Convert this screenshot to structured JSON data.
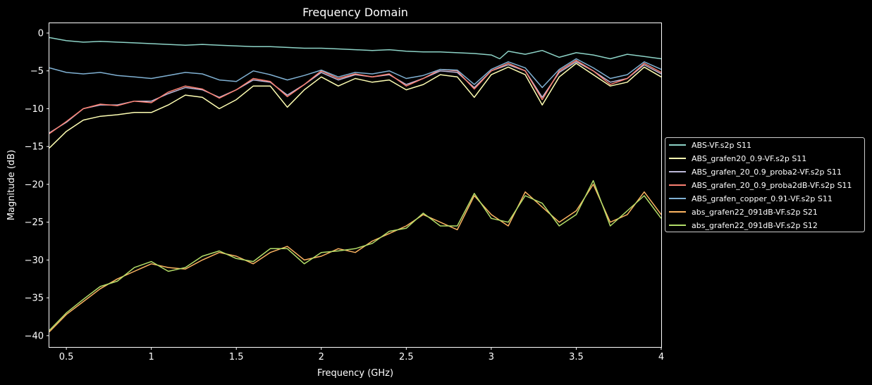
{
  "chart_data": {
    "type": "line",
    "title": "Frequency Domain",
    "xlabel": "Frequency (GHz)",
    "ylabel": "Magnitude (dB)",
    "xlim": [
      0.4,
      4.0
    ],
    "ylim": [
      -41.5,
      1.3
    ],
    "xticks": [
      0.5,
      1,
      1.5,
      2,
      2.5,
      3,
      3.5,
      4
    ],
    "xtick_labels": [
      "0.5",
      "1",
      "1.5",
      "2",
      "2.5",
      "3",
      "3.5",
      "4"
    ],
    "yticks": [
      0,
      -5,
      -10,
      -15,
      -20,
      -25,
      -30,
      -35,
      -40
    ],
    "ytick_labels": [
      "0",
      "−5",
      "−10",
      "−15",
      "−20",
      "−25",
      "−30",
      "−35",
      "−40"
    ],
    "grid": false,
    "legend_position": "center-right-outside",
    "background": "#000000",
    "axes_color": "#ffffff",
    "series": [
      {
        "name": "ABS-VF.s2p S11",
        "color": "#8dd3c7",
        "x": [
          0.4,
          0.5,
          0.6,
          0.7,
          0.8,
          0.9,
          1.0,
          1.1,
          1.2,
          1.3,
          1.4,
          1.5,
          1.6,
          1.7,
          1.8,
          1.9,
          2.0,
          2.1,
          2.2,
          2.3,
          2.4,
          2.5,
          2.6,
          2.7,
          2.8,
          2.9,
          3.0,
          3.05,
          3.1,
          3.2,
          3.3,
          3.4,
          3.5,
          3.6,
          3.7,
          3.8,
          3.9,
          4.0
        ],
        "y": [
          -0.6,
          -1.0,
          -1.2,
          -1.1,
          -1.2,
          -1.3,
          -1.4,
          -1.5,
          -1.6,
          -1.5,
          -1.6,
          -1.7,
          -1.8,
          -1.8,
          -1.9,
          -2.0,
          -2.0,
          -2.1,
          -2.2,
          -2.3,
          -2.2,
          -2.4,
          -2.5,
          -2.5,
          -2.6,
          -2.7,
          -2.9,
          -3.4,
          -2.4,
          -2.8,
          -2.3,
          -3.2,
          -2.6,
          -2.9,
          -3.4,
          -2.8,
          -3.1,
          -3.4
        ]
      },
      {
        "name": "ABS_grafen20_0.9-VF.s2p S11",
        "color": "#ffffb3",
        "x": [
          0.4,
          0.5,
          0.6,
          0.7,
          0.8,
          0.9,
          1.0,
          1.1,
          1.2,
          1.3,
          1.4,
          1.5,
          1.6,
          1.7,
          1.8,
          1.9,
          2.0,
          2.1,
          2.2,
          2.3,
          2.4,
          2.5,
          2.6,
          2.7,
          2.8,
          2.9,
          3.0,
          3.1,
          3.2,
          3.3,
          3.4,
          3.5,
          3.6,
          3.7,
          3.8,
          3.9,
          4.0
        ],
        "y": [
          -15.2,
          -13.0,
          -11.5,
          -11.0,
          -10.8,
          -10.5,
          -10.5,
          -9.5,
          -8.2,
          -8.5,
          -10.0,
          -8.8,
          -7.0,
          -7.0,
          -9.8,
          -7.5,
          -5.8,
          -7.0,
          -6.0,
          -6.5,
          -6.2,
          -7.5,
          -6.8,
          -5.5,
          -5.8,
          -8.5,
          -5.5,
          -4.5,
          -5.5,
          -9.5,
          -5.8,
          -4.0,
          -5.5,
          -7.0,
          -6.5,
          -4.5,
          -5.8
        ]
      },
      {
        "name": "ABS_grafen_20_0.9_proba2-VF.s2p S11",
        "color": "#bebada",
        "x": [
          0.4,
          0.5,
          0.6,
          0.7,
          0.8,
          0.9,
          1.0,
          1.1,
          1.2,
          1.3,
          1.4,
          1.5,
          1.6,
          1.7,
          1.8,
          1.9,
          2.0,
          2.1,
          2.2,
          2.3,
          2.4,
          2.5,
          2.6,
          2.7,
          2.8,
          2.9,
          3.0,
          3.1,
          3.2,
          3.3,
          3.4,
          3.5,
          3.6,
          3.7,
          3.8,
          3.9,
          4.0
        ],
        "y": [
          -13.2,
          -11.8,
          -10.0,
          -9.5,
          -9.5,
          -9.0,
          -9.0,
          -8.0,
          -7.2,
          -7.5,
          -8.5,
          -7.5,
          -6.2,
          -6.5,
          -8.2,
          -6.8,
          -5.2,
          -6.2,
          -5.5,
          -5.8,
          -5.5,
          -6.8,
          -6.0,
          -5.0,
          -5.2,
          -7.2,
          -5.0,
          -4.2,
          -5.0,
          -8.5,
          -5.2,
          -3.8,
          -5.0,
          -6.5,
          -6.0,
          -4.2,
          -5.4
        ]
      },
      {
        "name": "ABS_grafen_20_0.9_proba2dB-VF.s2p S11",
        "color": "#fb8072",
        "x": [
          0.4,
          0.5,
          0.6,
          0.7,
          0.8,
          0.9,
          1.0,
          1.1,
          1.2,
          1.3,
          1.4,
          1.5,
          1.6,
          1.7,
          1.8,
          1.9,
          2.0,
          2.1,
          2.2,
          2.3,
          2.4,
          2.5,
          2.6,
          2.7,
          2.8,
          2.9,
          3.0,
          3.1,
          3.2,
          3.3,
          3.4,
          3.5,
          3.6,
          3.7,
          3.8,
          3.9,
          4.0
        ],
        "y": [
          -13.3,
          -11.7,
          -10.0,
          -9.4,
          -9.6,
          -9.0,
          -9.2,
          -7.8,
          -7.0,
          -7.4,
          -8.6,
          -7.5,
          -6.0,
          -6.4,
          -8.4,
          -6.8,
          -5.0,
          -6.0,
          -5.4,
          -5.8,
          -5.4,
          -7.0,
          -6.0,
          -4.8,
          -5.0,
          -7.4,
          -5.0,
          -4.0,
          -5.0,
          -8.8,
          -5.0,
          -3.6,
          -5.0,
          -6.8,
          -6.0,
          -4.0,
          -5.2
        ]
      },
      {
        "name": "ABS_grafen_copper_0.91-VF.s2p S11",
        "color": "#80b1d3",
        "x": [
          0.4,
          0.5,
          0.6,
          0.7,
          0.8,
          0.9,
          1.0,
          1.1,
          1.2,
          1.3,
          1.4,
          1.5,
          1.6,
          1.7,
          1.8,
          1.9,
          2.0,
          2.1,
          2.2,
          2.3,
          2.4,
          2.5,
          2.6,
          2.7,
          2.8,
          2.9,
          3.0,
          3.1,
          3.2,
          3.3,
          3.4,
          3.5,
          3.6,
          3.7,
          3.8,
          3.9,
          4.0
        ],
        "y": [
          -4.6,
          -5.2,
          -5.4,
          -5.2,
          -5.6,
          -5.8,
          -6.0,
          -5.6,
          -5.2,
          -5.4,
          -6.2,
          -6.4,
          -5.0,
          -5.5,
          -6.2,
          -5.6,
          -4.9,
          -5.8,
          -5.2,
          -5.4,
          -5.0,
          -6.0,
          -5.6,
          -4.8,
          -4.9,
          -6.8,
          -4.8,
          -3.8,
          -4.6,
          -7.2,
          -4.8,
          -3.4,
          -4.6,
          -6.0,
          -5.5,
          -3.8,
          -4.8
        ]
      },
      {
        "name": "abs_grafen22_091dB-VF.s2p S21",
        "color": "#fdb462",
        "x": [
          0.4,
          0.5,
          0.6,
          0.7,
          0.8,
          0.9,
          1.0,
          1.1,
          1.2,
          1.3,
          1.4,
          1.5,
          1.6,
          1.7,
          1.8,
          1.9,
          2.0,
          2.1,
          2.2,
          2.3,
          2.4,
          2.5,
          2.6,
          2.7,
          2.8,
          2.9,
          3.0,
          3.1,
          3.2,
          3.3,
          3.4,
          3.5,
          3.6,
          3.7,
          3.8,
          3.9,
          4.0
        ],
        "y": [
          -39.5,
          -37.2,
          -35.5,
          -33.8,
          -32.5,
          -31.5,
          -30.5,
          -31.0,
          -31.2,
          -30.0,
          -29.0,
          -29.5,
          -30.5,
          -29.0,
          -28.2,
          -30.0,
          -29.5,
          -28.5,
          -29.0,
          -27.5,
          -26.5,
          -25.5,
          -24.0,
          -25.0,
          -26.0,
          -21.5,
          -24.0,
          -25.5,
          -21.0,
          -23.0,
          -25.0,
          -23.5,
          -20.0,
          -25.0,
          -24.0,
          -21.0,
          -24.0
        ]
      },
      {
        "name": "abs_grafen22_091dB-VF.s2p S12",
        "color": "#b3de69",
        "x": [
          0.4,
          0.5,
          0.6,
          0.7,
          0.8,
          0.9,
          1.0,
          1.1,
          1.2,
          1.3,
          1.4,
          1.5,
          1.6,
          1.7,
          1.8,
          1.9,
          2.0,
          2.1,
          2.2,
          2.3,
          2.4,
          2.5,
          2.6,
          2.7,
          2.8,
          2.9,
          3.0,
          3.1,
          3.2,
          3.3,
          3.4,
          3.5,
          3.6,
          3.7,
          3.8,
          3.9,
          4.0
        ],
        "y": [
          -39.3,
          -37.0,
          -35.2,
          -33.5,
          -32.8,
          -31.0,
          -30.2,
          -31.5,
          -31.0,
          -29.5,
          -28.8,
          -29.8,
          -30.2,
          -28.5,
          -28.5,
          -30.5,
          -29.0,
          -28.8,
          -28.5,
          -27.8,
          -26.2,
          -25.8,
          -23.8,
          -25.5,
          -25.5,
          -21.2,
          -24.5,
          -25.0,
          -21.5,
          -22.5,
          -25.5,
          -24.0,
          -19.5,
          -25.5,
          -23.5,
          -21.5,
          -24.5
        ]
      }
    ]
  }
}
